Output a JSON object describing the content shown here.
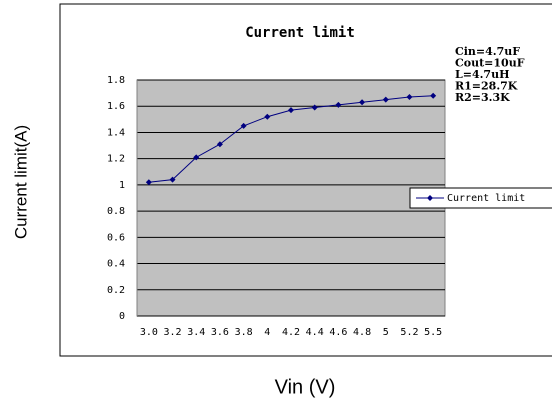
{
  "chart_data": {
    "type": "line",
    "title": "Current limit",
    "x_label": "Vin (V)",
    "y_label": "Current limit(A)",
    "categories": [
      "3.0",
      "3.2",
      "3.4",
      "3.6",
      "3.8",
      "4",
      "4.2",
      "4.4",
      "4.6",
      "4.8",
      "5",
      "5.2",
      "5.5"
    ],
    "series": [
      {
        "name": "Current limit",
        "color": "#000080",
        "values": [
          1.02,
          1.04,
          1.21,
          1.31,
          1.45,
          1.52,
          1.57,
          1.59,
          1.61,
          1.63,
          1.65,
          1.67,
          1.68
        ]
      }
    ],
    "ylim": [
      0,
      1.8
    ],
    "yticks": [
      0,
      0.2,
      0.4,
      0.6,
      0.8,
      1,
      1.2,
      1.4,
      1.6,
      1.8
    ],
    "grid": true,
    "legend": "right",
    "annotations": [
      "Cin=4.7uF",
      "Cout=10uF",
      "L=4.7uH",
      "R1=28.7K",
      "R2=3.3K"
    ]
  }
}
